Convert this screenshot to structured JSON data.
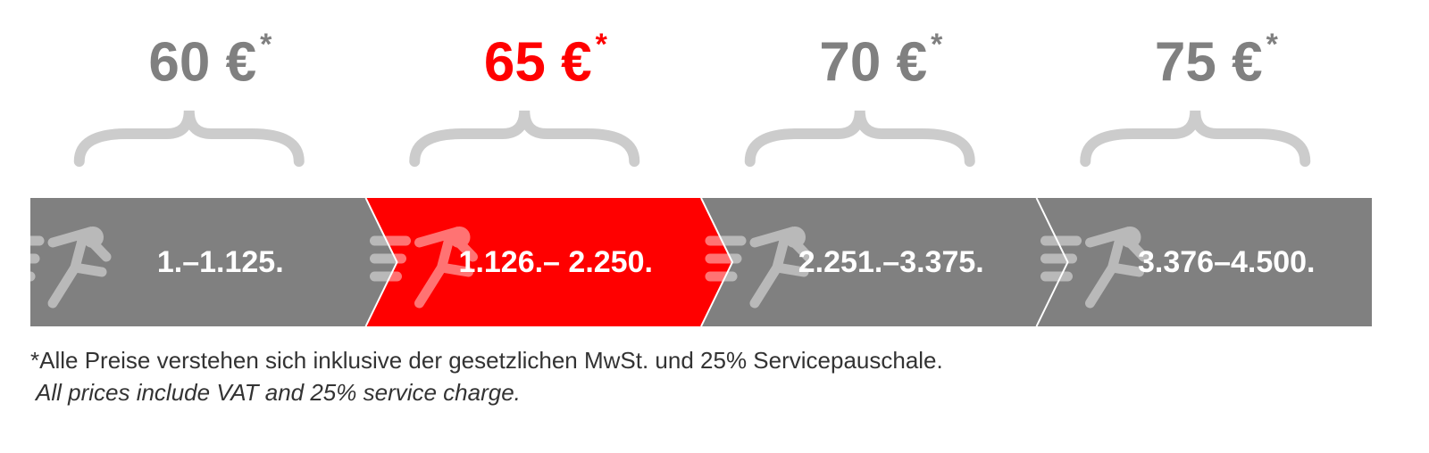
{
  "tiers": [
    {
      "price": "60 €",
      "mark": "*",
      "range": "1.–1.125.",
      "color": "#808080"
    },
    {
      "price": "65 €",
      "mark": "*",
      "range": "1.126.– 2.250.",
      "color": "#ff0000"
    },
    {
      "price": "70 €",
      "mark": "*",
      "range": "2.251.–3.375.",
      "color": "#808080"
    },
    {
      "price": "75 €",
      "mark": "*",
      "range": "3.376–4.500.",
      "color": "#808080"
    }
  ],
  "footnote": {
    "de": "*Alle Preise verstehen sich inklusive der gesetzlichen MwSt. und 25% Servicepauschale.",
    "en": "All prices include VAT and 25% service charge."
  }
}
